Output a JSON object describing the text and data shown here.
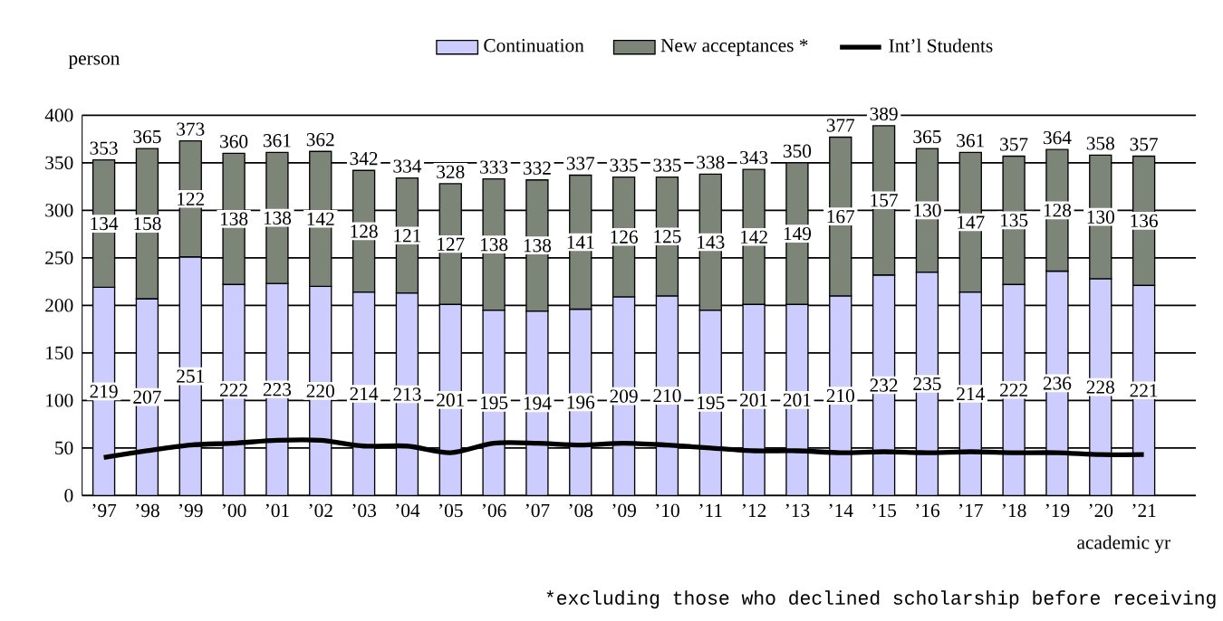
{
  "chart_data": {
    "type": "bar",
    "stacked": true,
    "ylabel": "person",
    "xlabel": "academic yr",
    "categories": [
      "’97",
      "’98",
      "’99",
      "’00",
      "’01",
      "’02",
      "’03",
      "’04",
      "’05",
      "’06",
      "’07",
      "’08",
      "’09",
      "’10",
      "’11",
      "’12",
      "’13",
      "’14",
      "’15",
      "’16",
      "’17",
      "’18",
      "’19",
      "’20",
      "’21"
    ],
    "series": [
      {
        "name": "Continuation",
        "color": "#ccccff",
        "values": [
          219,
          207,
          251,
          222,
          223,
          220,
          214,
          213,
          201,
          195,
          194,
          196,
          209,
          210,
          195,
          201,
          201,
          210,
          232,
          235,
          214,
          222,
          236,
          228,
          221
        ],
        "value_labels": [
          "219",
          "207",
          "251",
          "222",
          "223",
          "220",
          "214",
          "213",
          "201",
          "195",
          "194",
          "196",
          "209",
          "210",
          "195",
          "201",
          "201",
          "210",
          "232",
          "235",
          "214",
          "222",
          "236",
          "228",
          "221"
        ]
      },
      {
        "name": "New acceptances *",
        "color": "#7d8579",
        "values": [
          134,
          158,
          122,
          138,
          138,
          142,
          128,
          121,
          127,
          138,
          138,
          141,
          126,
          125,
          143,
          142,
          149,
          167,
          157,
          130,
          147,
          135,
          128,
          130,
          136
        ],
        "value_labels": [
          "134",
          "158",
          "122",
          "138",
          "138",
          "142",
          "128",
          "121",
          "127",
          "138",
          "138",
          "141",
          "126",
          "125",
          "143",
          "142",
          "149",
          "167",
          "157",
          "130",
          "147",
          "135",
          "128",
          "130",
          "136"
        ]
      },
      {
        "name": "Int’l Students",
        "type": "line",
        "color": "#000000",
        "values": [
          40,
          47,
          53,
          55,
          58,
          58,
          52,
          52,
          45,
          55,
          55,
          53,
          55,
          53,
          50,
          47,
          47,
          45,
          46,
          45,
          46,
          45,
          45,
          43,
          43
        ]
      }
    ],
    "totals": [
      "353",
      "365",
      "373",
      "360",
      "361",
      "362",
      "342",
      "334",
      "328",
      "333",
      "332",
      "337",
      "335",
      "335",
      "338",
      "343",
      "350",
      "377",
      "389",
      "365",
      "361",
      "357",
      "364",
      "358",
      "357"
    ],
    "ylim": [
      0,
      400
    ],
    "yticks": [
      0,
      50,
      100,
      150,
      200,
      250,
      300,
      350,
      400
    ],
    "grid": "y",
    "legend": "top",
    "annotations": [
      "*excluding those who declined scholarship before receiving"
    ]
  }
}
